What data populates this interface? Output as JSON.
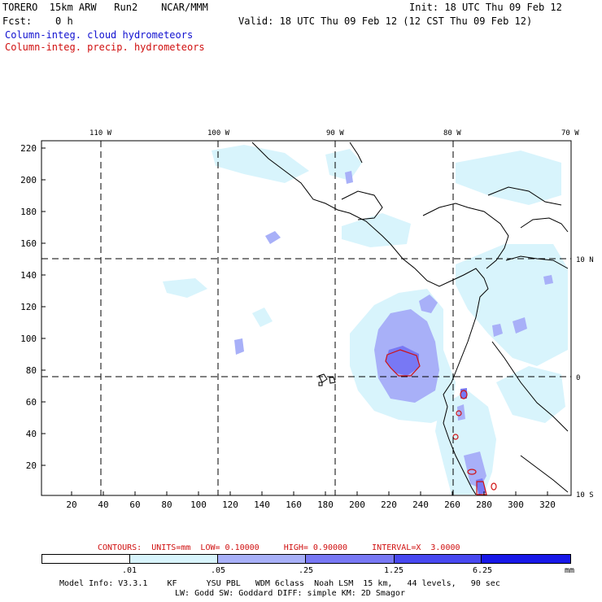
{
  "header": {
    "model": "TORERO  15km ARW   Run2    NCAR/MMM",
    "init": "Init: 18 UTC Thu 09 Feb 12",
    "fcst": "Fcst:    0 h",
    "valid": "Valid: 18 UTC Thu 09 Feb 12 (12 CST Thu 09 Feb 12)",
    "field_cloud": "Column-integ. cloud hydrometeors",
    "field_precip": "Column-integ. precip. hydrometeors"
  },
  "map": {
    "lon_labels": [
      "110 W",
      "100 W",
      "90 W",
      "80 W",
      "70 W"
    ],
    "lat_labels": [
      "10 N",
      "0",
      "10 S"
    ],
    "y_ticks": [
      "220",
      "200",
      "180",
      "160",
      "140",
      "120",
      "100",
      "80",
      "60",
      "40",
      "20"
    ],
    "x_ticks": [
      "20",
      "40",
      "60",
      "80",
      "100",
      "120",
      "140",
      "160",
      "180",
      "200",
      "220",
      "240",
      "260",
      "280",
      "300",
      "320"
    ]
  },
  "contours": {
    "label": "CONTOURS:  UNITS=mm  LOW= 0.10000     HIGH= 0.90000     INTERVAL=X  3.0000"
  },
  "legend": {
    "ticks": [
      ".01",
      ".05",
      ".25",
      "1.25",
      "6.25"
    ],
    "unit": "mm",
    "colors": [
      "#ffffff",
      "#d8f4fc",
      "#a8b0f8",
      "#7878f4",
      "#4848f0",
      "#1818e8"
    ]
  },
  "footer": {
    "line1": "Model Info: V3.3.1    KF      YSU PBL   WDM 6class  Noah LSM  15 km,   44 levels,   90 sec",
    "line2": "LW: Godd SW: Goddard DIFF: simple KM: 2D Smagor"
  }
}
